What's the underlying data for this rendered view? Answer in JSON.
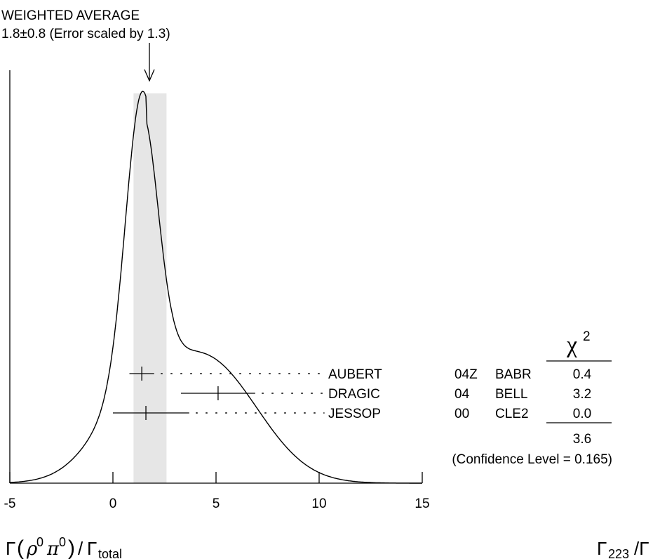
{
  "header": {
    "line1": "WEIGHTED AVERAGE",
    "line2": "1.8±0.8 (Error scaled by 1.3)"
  },
  "chart_data": {
    "type": "ideogram",
    "weighted_average": 1.8,
    "error": 0.8,
    "error_scale": 1.3,
    "band": [
      1.0,
      2.6
    ],
    "arrow_at": 1.8,
    "xlim": [
      -5,
      15
    ],
    "x_ticks": [
      -5,
      0,
      5,
      10,
      15
    ],
    "x_tick_labels": [
      "-5",
      "0",
      "5",
      "10",
      "15"
    ],
    "measurements": [
      {
        "author": "AUBERT",
        "year": "04Z",
        "experiment": "BABR",
        "value": 1.4,
        "err_lo": 0.6,
        "err_hi": 0.6,
        "chi2": "0.4"
      },
      {
        "author": "DRAGIC",
        "year": "04",
        "experiment": "BELL",
        "value": 5.1,
        "err_lo": 1.8,
        "err_hi": 1.8,
        "chi2": "3.2"
      },
      {
        "author": "JESSOP",
        "year": "00",
        "experiment": "CLE2",
        "value": 1.6,
        "err_lo": 1.6,
        "err_hi": 2.1,
        "chi2": "0.0"
      }
    ],
    "chi2_header": "χ",
    "chi2_power": "2",
    "chi2_total": "3.6",
    "confidence_level": "(Confidence Level = 0.165)"
  },
  "footer": {
    "quantity": {
      "gamma": "Γ",
      "rho": "ρ",
      "sup0": "0",
      "pi": "π",
      "slash": "/",
      "total": "total"
    },
    "code": {
      "gamma": "Γ",
      "sub": "223",
      "slash": "/Γ"
    }
  }
}
